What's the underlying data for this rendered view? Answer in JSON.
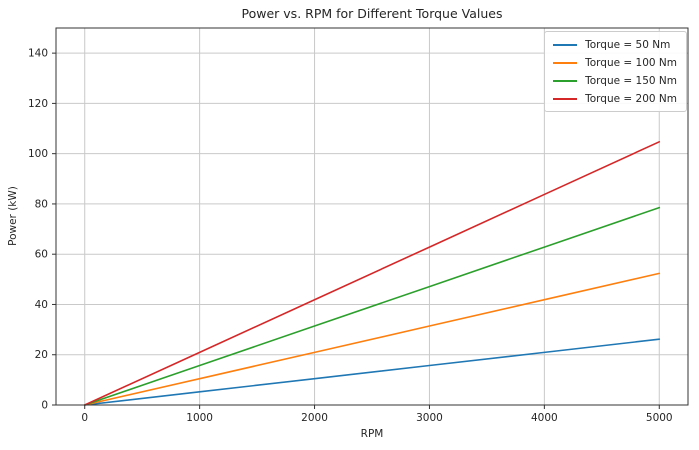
{
  "chart_data": {
    "type": "line",
    "title": "Power vs. RPM for Different Torque Values",
    "xlabel": "RPM",
    "ylabel": "Power (kW)",
    "x": [
      0,
      1000,
      2000,
      3000,
      4000,
      5000
    ],
    "series": [
      {
        "name": "Torque = 50 Nm",
        "color": "#1f77b4",
        "values": [
          0,
          5.24,
          10.47,
          15.71,
          20.94,
          26.18
        ]
      },
      {
        "name": "Torque = 100 Nm",
        "color": "#ff7f0e",
        "values": [
          0,
          10.47,
          20.94,
          31.42,
          41.89,
          52.36
        ]
      },
      {
        "name": "Torque = 150 Nm",
        "color": "#2ca02c",
        "values": [
          0,
          15.71,
          31.42,
          47.12,
          62.83,
          78.54
        ]
      },
      {
        "name": "Torque = 200 Nm",
        "color": "#d62728",
        "values": [
          0,
          20.94,
          41.89,
          62.83,
          83.78,
          104.72
        ]
      }
    ],
    "xlim": [
      -250,
      5250
    ],
    "ylim": [
      0,
      150
    ],
    "xticks": [
      0,
      1000,
      2000,
      3000,
      4000,
      5000
    ],
    "yticks": [
      0,
      20,
      40,
      60,
      80,
      100,
      120,
      140
    ],
    "grid": true,
    "legend_position": "upper right",
    "colors": {
      "grid": "#c9c9c9",
      "spine": "#333333",
      "tick_text": "#262626",
      "background": "#ffffff"
    }
  }
}
